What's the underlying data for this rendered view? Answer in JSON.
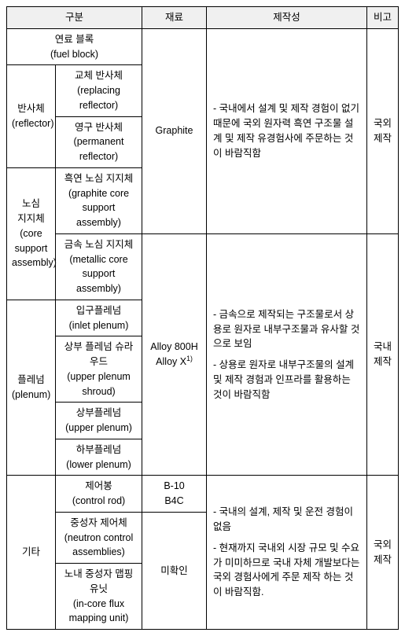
{
  "headers": {
    "col1": "구분",
    "col2": "재료",
    "col3": "제작성",
    "col4": "비고"
  },
  "r1": {
    "name_kr": "연료 블록",
    "name_en": "(fuel block)",
    "material": "Graphite",
    "desc": "- 국내에서 설계 및 제작 경험이 없기 때문에 국외 원자력 흑연 구조물 설계 및 제작 유경험사에 주문하는 것이 바람직함",
    "note": "국외\n제작"
  },
  "r2": {
    "group_kr": "반사체",
    "group_en": "(reflector)",
    "sub1_kr": "교체 반사체",
    "sub1_en": "(replacing reflector)",
    "sub2_kr": "영구 반사체",
    "sub2_en": "(permanent reflector)"
  },
  "r3": {
    "group_kr": "노심\n지지체",
    "group_en": "(core support assembly)",
    "sub1_kr": "흑연 노심 지지체",
    "sub1_en": "(graphite core support assembly)",
    "sub2_kr": "금속 노심 지지체",
    "sub2_en": "(metallic core support assembly)"
  },
  "r4": {
    "group_kr": "플레넘",
    "group_en": "(plenum)",
    "sub1_kr": "입구플레넘",
    "sub1_en": "(inlet plenum)",
    "sub2_kr": "상부 플레넘 슈라우드",
    "sub2_en": "(upper plenum shroud)",
    "sub3_kr": "상부플레넘",
    "sub3_en": "(upper  plenum)",
    "sub4_kr": "하부플레넘",
    "sub4_en": "(lower  plenum)",
    "material": "Alloy 800H\nAlloy X",
    "material_sup": "1)",
    "desc1": "- 금속으로 제작되는 구조물로서 상용로 원자로 내부구조물과 유사할 것으로 보임",
    "desc2": "- 상용로 원자로 내부구조물의 설계 및 제작 경험과 인프라를 활용하는 것이 바람직함",
    "note": "국내\n제작"
  },
  "r5": {
    "group_kr": "기타",
    "sub1_kr": "제어봉",
    "sub1_en": "(control rod)",
    "sub2_kr": "중성자 제어체",
    "sub2_en": "(neutron control assemblies)",
    "sub3_kr": "노내 중성자 맵핑 유닛",
    "sub3_en": "(in-core flux mapping unit)",
    "material1": "B-10\nB4C",
    "material2": "미확인",
    "desc1": "- 국내의 설계, 제작 및 운전 경험이 없음",
    "desc2": "- 현재까지 국내외 시장 규모 및 수요가 미미하므로 국내 자체 개발보다는 국외 경험사에게 주문 제작 하는 것이 바람직함.",
    "note": "국외\n제작"
  }
}
